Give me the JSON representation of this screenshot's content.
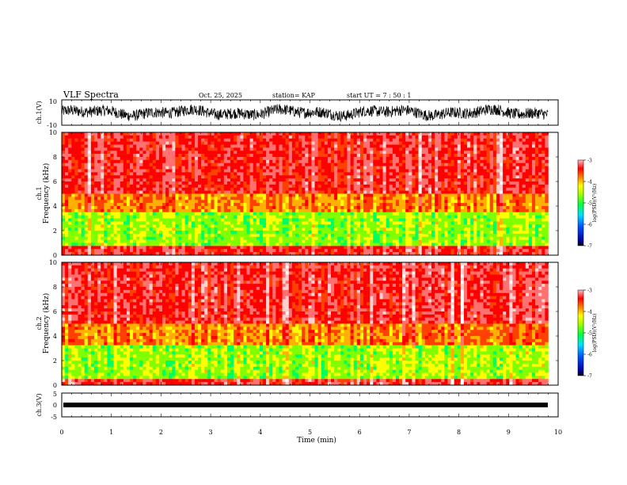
{
  "header": {
    "title": "VLF Spectra",
    "date": "Oct. 25, 2025",
    "station": "station= KAP",
    "start": "start  UT  =   7 : 50 : 1"
  },
  "chart_data": [
    {
      "id": "ch1-waveform",
      "type": "line",
      "ylabel": "ch.1(V)",
      "ylim": [
        -10,
        10
      ],
      "y_ticks": [
        "10",
        "-10"
      ],
      "xlim": [
        0,
        10
      ],
      "note": "dense noise waveform centered near 0 V, amplitude ~ +/-6 V, data ends at ~9.8 min"
    },
    {
      "id": "ch1-spectrogram",
      "type": "heatmap",
      "ylabel": "ch.1\nFrequency  (kHz)",
      "ylabel_lines": [
        "ch.1",
        "Frequency  (kHz)"
      ],
      "ylim": [
        0,
        10
      ],
      "y_ticks": [
        "0",
        "2",
        "4",
        "6",
        "8",
        "10"
      ],
      "xlim": [
        0,
        10
      ],
      "data_end_min": 9.8,
      "bands_khz": [
        {
          "from": 0,
          "to": 0.8,
          "level": "high",
          "note": "strong low-frequency noise"
        },
        {
          "from": 0.8,
          "to": 3.5,
          "level": "low",
          "note": "green/yellow quieter band"
        },
        {
          "from": 3.5,
          "to": 5.0,
          "level": "mid"
        },
        {
          "from": 5.0,
          "to": 10,
          "level": "high",
          "note": "red/white broadband impulses"
        }
      ],
      "colorbar": {
        "label": "log(PSD)(V²/Hz)",
        "range": [
          -7,
          -3
        ],
        "ticks": [
          "-3",
          "-4",
          "-5",
          "-6",
          "-7"
        ]
      }
    },
    {
      "id": "ch2-spectrogram",
      "type": "heatmap",
      "ylabel": "ch.2\nFrequency  (kHz)",
      "ylabel_lines": [
        "ch.2",
        "Frequency  (kHz)"
      ],
      "ylim": [
        0,
        10
      ],
      "y_ticks": [
        "0",
        "2",
        "4",
        "6",
        "8",
        "10"
      ],
      "xlim": [
        0,
        10
      ],
      "data_end_min": 9.8,
      "bands_khz": [
        {
          "from": 0,
          "to": 0.5,
          "level": "high"
        },
        {
          "from": 0.5,
          "to": 3.2,
          "level": "low",
          "note": "green/cyan quieter band"
        },
        {
          "from": 3.2,
          "to": 5.0,
          "level": "mid"
        },
        {
          "from": 5.0,
          "to": 10,
          "level": "high"
        }
      ],
      "colorbar": {
        "label": "log(PSD)(V²/Hz)",
        "range": [
          -7,
          -3
        ],
        "ticks": [
          "-3",
          "-4",
          "-5",
          "-6",
          "-7"
        ]
      }
    },
    {
      "id": "ch3-waveform",
      "type": "line",
      "ylabel": "ch.3(V)",
      "ylim": [
        -5,
        5
      ],
      "y_ticks": [
        "5",
        "0",
        "-5"
      ],
      "xlim": [
        0,
        10
      ],
      "x_ticks": [
        "0",
        "1",
        "2",
        "3",
        "4",
        "5",
        "6",
        "7",
        "8",
        "9",
        "10"
      ],
      "xlabel": "Time  (min)",
      "note": "flat thick trace near 0 V across 0–9.8 min"
    }
  ]
}
